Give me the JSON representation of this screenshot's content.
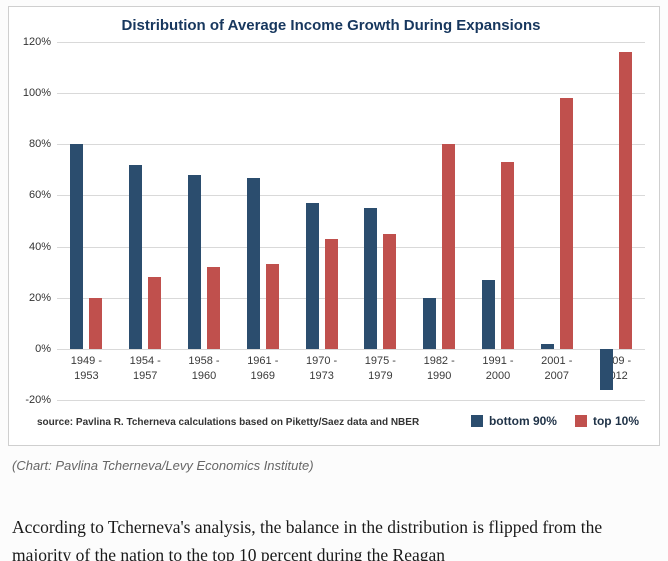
{
  "page": {
    "caption": "(Chart: Pavlina Tcherneva/Levy Economics Institute)",
    "body_text": "According to Tcherneva's analysis, the balance in the distribution is flipped from the majority of the nation to the top 10 percent during the Reagan"
  },
  "chart_data": {
    "type": "bar",
    "title": "Distribution of Average Income Growth During Expansions",
    "source": "source: Pavlina R. Tcherneva calculations based on Piketty/Saez data and NBER",
    "categories": [
      "1949 - 1953",
      "1954 - 1957",
      "1958 - 1960",
      "1961 - 1969",
      "1970 - 1973",
      "1975 - 1979",
      "1982 - 1990",
      "1991 - 2000",
      "2001 - 2007",
      "2009 - 2012"
    ],
    "series": [
      {
        "name": "bottom 90%",
        "color": "#2b4d6e",
        "values": [
          80,
          72,
          68,
          67,
          57,
          55,
          20,
          27,
          2,
          -16
        ]
      },
      {
        "name": "top 10%",
        "color": "#c0504d",
        "values": [
          20,
          28,
          32,
          33,
          43,
          45,
          80,
          73,
          98,
          116
        ]
      }
    ],
    "yticks": [
      -20,
      0,
      20,
      40,
      60,
      80,
      100,
      120
    ],
    "ylim": [
      -20,
      120
    ],
    "ylabel": "",
    "xlabel": "",
    "grid": "horizontal",
    "legend_position": "bottom-right"
  }
}
